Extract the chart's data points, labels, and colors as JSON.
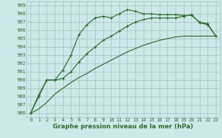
{
  "xlabel": "Graphe pression niveau de la mer (hPa)",
  "ylim": [
    985.5,
    999.5
  ],
  "xlim": [
    -0.5,
    23.5
  ],
  "yticks": [
    986,
    987,
    988,
    989,
    990,
    991,
    992,
    993,
    994,
    995,
    996,
    997,
    998,
    999
  ],
  "xticks": [
    0,
    1,
    2,
    3,
    4,
    5,
    6,
    7,
    8,
    9,
    10,
    11,
    12,
    13,
    14,
    15,
    16,
    17,
    18,
    19,
    20,
    21,
    22,
    23
  ],
  "line_upper_y": [
    986.0,
    988.2,
    990.0,
    990.0,
    991.2,
    993.0,
    995.5,
    996.7,
    997.5,
    997.7,
    997.5,
    998.0,
    998.5,
    998.3,
    998.0,
    998.0,
    997.9,
    997.9,
    997.9,
    997.8,
    997.8,
    997.0,
    996.8,
    995.3
  ],
  "line_mid_y": [
    986.0,
    988.0,
    990.0,
    990.0,
    990.2,
    991.0,
    992.2,
    993.2,
    994.0,
    994.8,
    995.3,
    995.9,
    996.5,
    997.0,
    997.3,
    997.5,
    997.5,
    997.5,
    997.5,
    997.7,
    997.9,
    996.9,
    996.7,
    995.3
  ],
  "line_low_y": [
    986.0,
    986.5,
    987.3,
    988.3,
    989.0,
    989.7,
    990.3,
    990.8,
    991.4,
    991.9,
    992.4,
    992.9,
    993.4,
    993.8,
    994.2,
    994.5,
    994.8,
    995.0,
    995.2,
    995.3,
    995.3,
    995.3,
    995.3,
    995.3
  ],
  "bg_color": "#cce8e8",
  "grid_color": "#9dbfbf",
  "line_color": "#2a6e2a",
  "tick_fontsize": 5.0,
  "xlabel_fontsize": 6.5
}
